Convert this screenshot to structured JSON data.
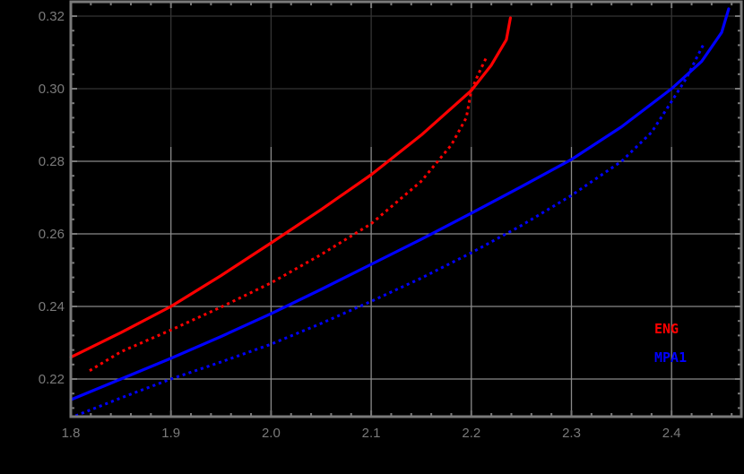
{
  "chart_data": {
    "type": "line",
    "title": "",
    "xlabel": "",
    "ylabel": "",
    "xlim": [
      1.8,
      2.47
    ],
    "ylim": [
      0.2096,
      0.323
    ],
    "grid": true,
    "x_ticks": [
      1.8,
      1.9,
      2.0,
      2.1,
      2.2,
      2.3,
      2.4
    ],
    "x_tick_labels": [
      "1.8",
      "1.9",
      "2.0",
      "2.1",
      "2.2",
      "2.3",
      "2.4"
    ],
    "y_ticks": [
      0.22,
      0.24,
      0.26,
      0.28,
      0.3,
      0.32
    ],
    "y_tick_labels": [
      "0.22",
      "0.24",
      "0.26",
      "0.28",
      "0.30",
      "0.32"
    ],
    "legend": {
      "position": "inside-lower-right",
      "entries": [
        {
          "label": "ENG",
          "color": "#ff0000"
        },
        {
          "label": "MPA1",
          "color": "#0000ff"
        }
      ]
    },
    "series": [
      {
        "name": "ENG (solid)",
        "color": "#ff0000",
        "style": "solid",
        "x": [
          1.8,
          1.85,
          1.9,
          1.95,
          2.0,
          2.05,
          2.1,
          2.15,
          2.2,
          2.22,
          2.235,
          2.239
        ],
        "y": [
          0.226,
          0.2328,
          0.24,
          0.2485,
          0.2575,
          0.2667,
          0.2763,
          0.2872,
          0.2995,
          0.3065,
          0.3135,
          0.3195
        ]
      },
      {
        "name": "ENG (dotted)",
        "color": "#ff0000",
        "style": "dotted",
        "x": [
          1.82,
          1.85,
          1.9,
          1.95,
          2.0,
          2.05,
          2.1,
          2.15,
          2.18,
          2.195,
          2.2,
          2.207,
          2.214
        ],
        "y": [
          0.2225,
          0.2275,
          0.2335,
          0.2398,
          0.2465,
          0.2543,
          0.2628,
          0.2745,
          0.2845,
          0.292,
          0.2995,
          0.304,
          0.308
        ]
      },
      {
        "name": "MPA1 (solid)",
        "color": "#0000ff",
        "style": "solid",
        "x": [
          1.8,
          1.85,
          1.9,
          1.95,
          2.0,
          2.05,
          2.1,
          2.15,
          2.2,
          2.25,
          2.3,
          2.35,
          2.4,
          2.43,
          2.45,
          2.457
        ],
        "y": [
          0.2143,
          0.22,
          0.2257,
          0.2317,
          0.238,
          0.2447,
          0.2516,
          0.2585,
          0.2657,
          0.273,
          0.2805,
          0.2895,
          0.3,
          0.3075,
          0.3155,
          0.322
        ]
      },
      {
        "name": "MPA1 (dotted)",
        "color": "#0000ff",
        "style": "dotted",
        "x": [
          1.806,
          1.85,
          1.9,
          1.95,
          2.0,
          2.05,
          2.1,
          2.15,
          2.2,
          2.25,
          2.3,
          2.35,
          2.38,
          2.4,
          2.415,
          2.425,
          2.433
        ],
        "y": [
          0.21,
          0.2148,
          0.22,
          0.2247,
          0.2296,
          0.2353,
          0.2414,
          0.2478,
          0.2548,
          0.2623,
          0.2706,
          0.28,
          0.288,
          0.2965,
          0.303,
          0.3085,
          0.3128
        ]
      }
    ]
  },
  "legend": {
    "eng_label": "ENG",
    "mpa1_label": "MPA1"
  },
  "axes": {
    "x_tick_labels": [
      "1.8",
      "1.9",
      "2.0",
      "2.1",
      "2.2",
      "2.3",
      "2.4"
    ],
    "y_tick_labels": [
      "0.22",
      "0.24",
      "0.26",
      "0.28",
      "0.30",
      "0.32"
    ]
  }
}
